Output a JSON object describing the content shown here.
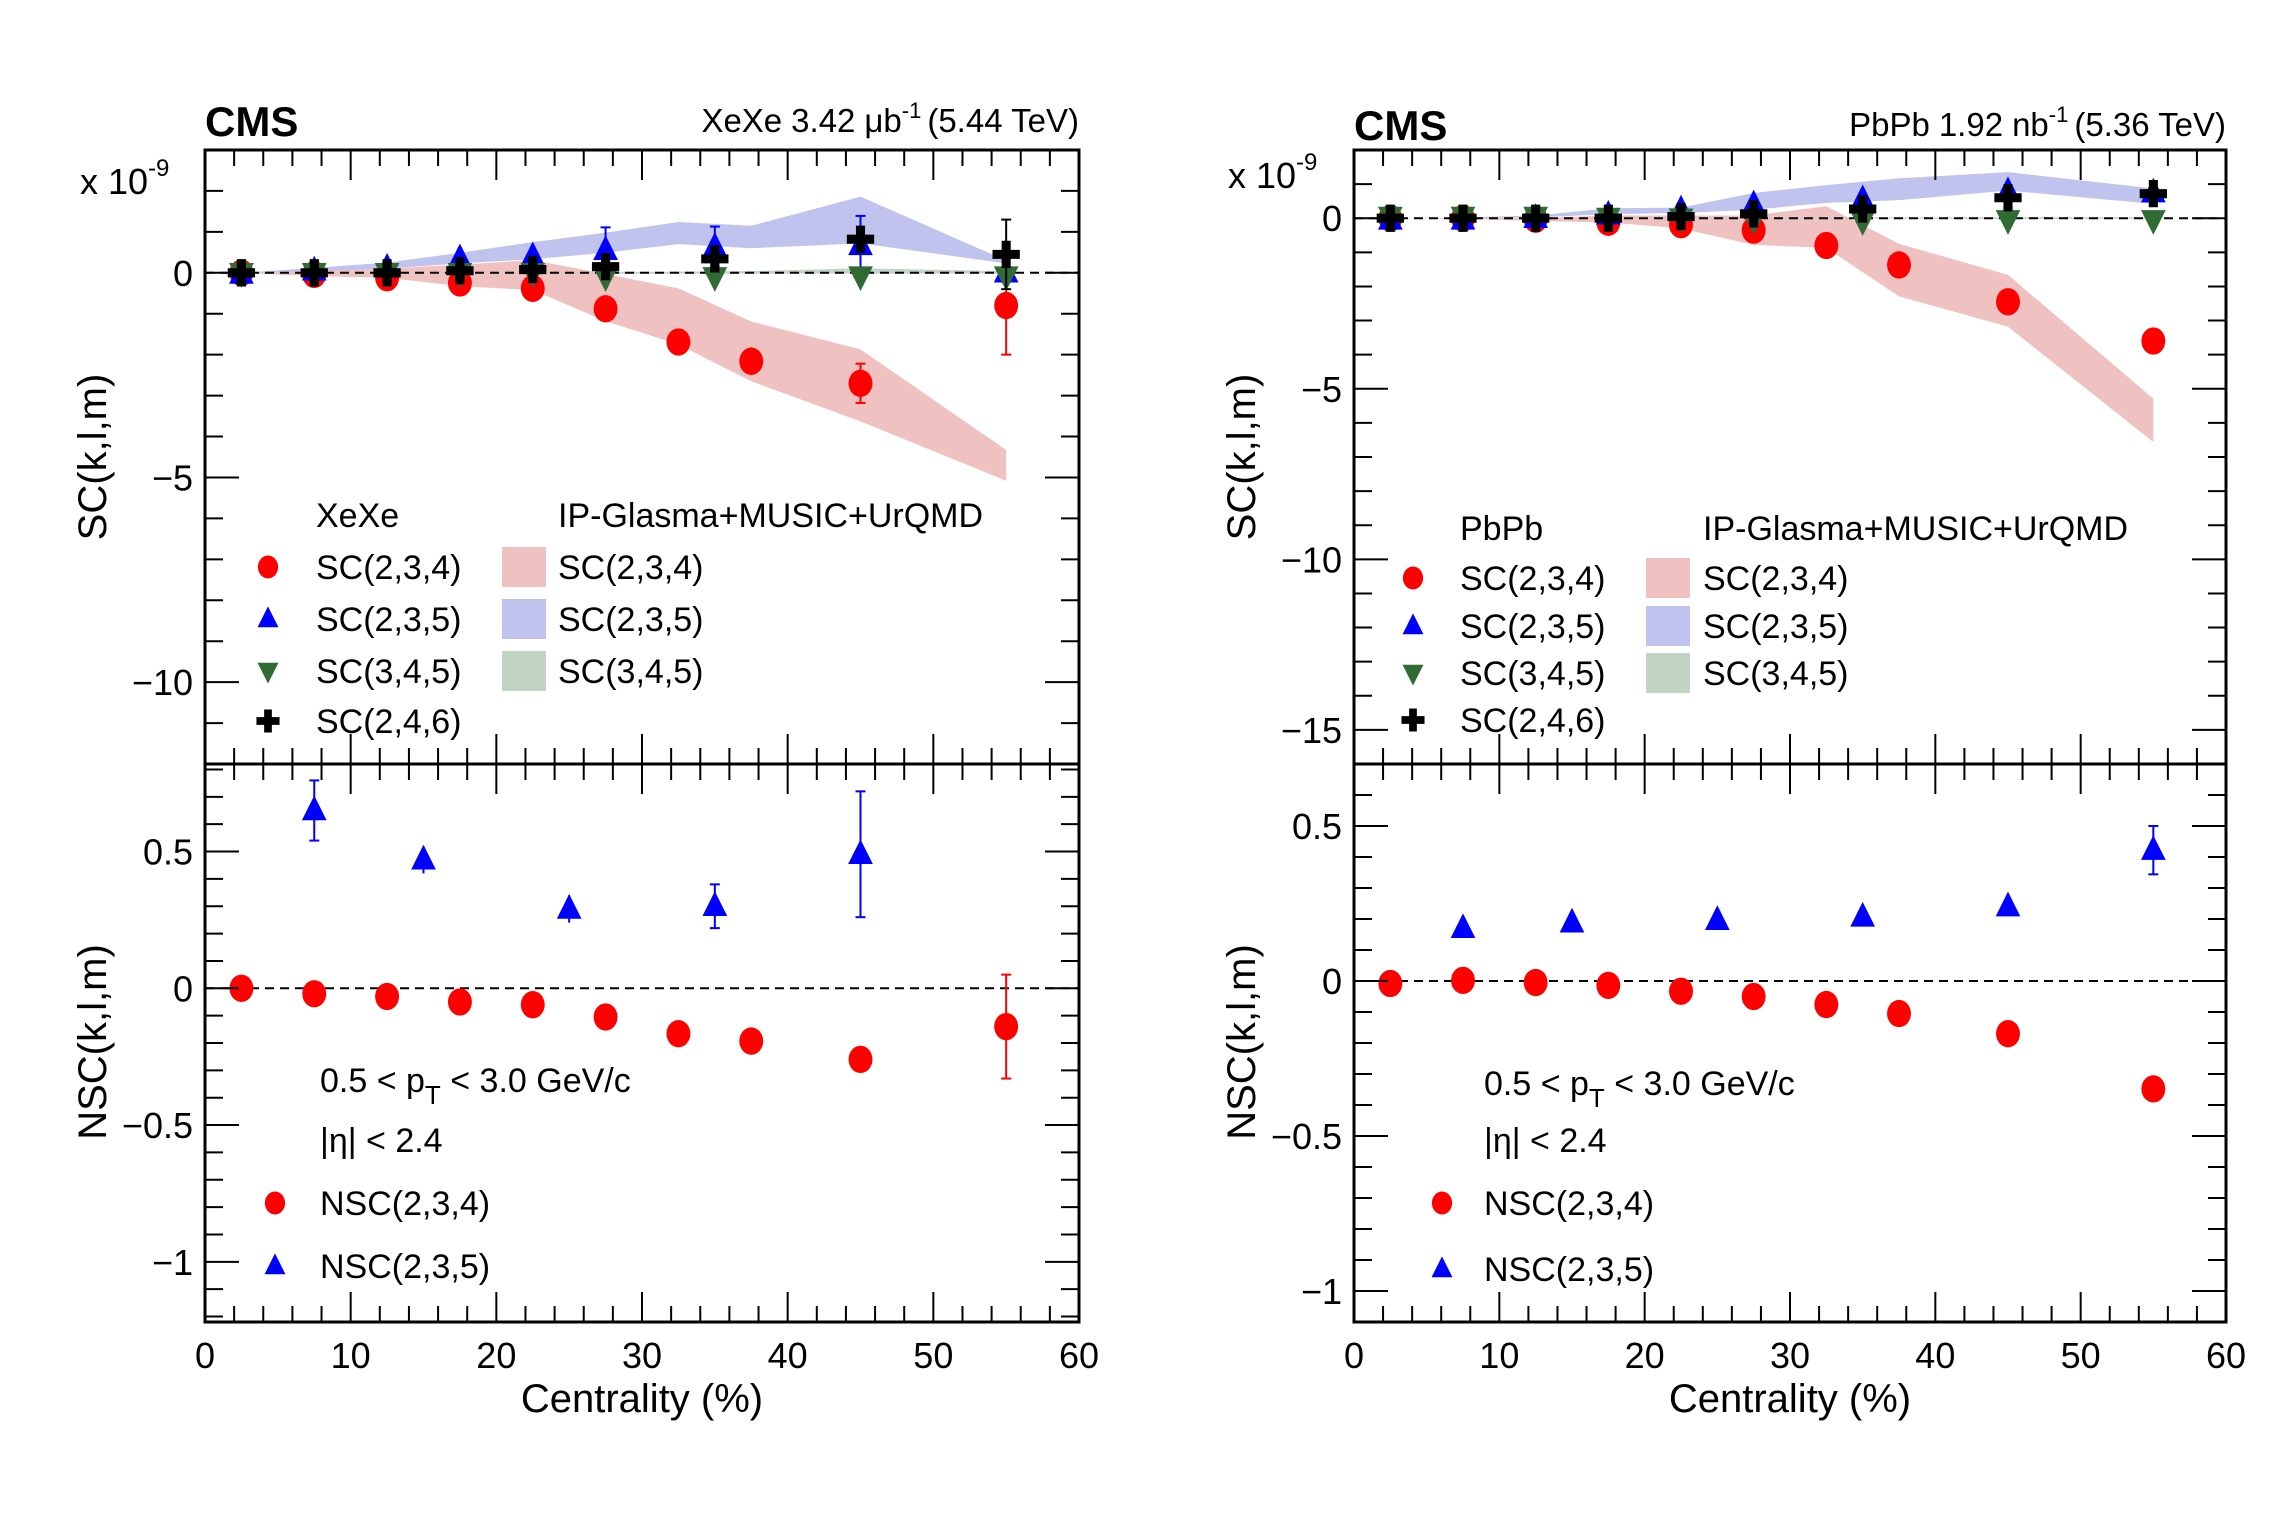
{
  "chart_data": [
    {
      "type": "scatter",
      "panel": "XeXe-SC",
      "experiment_label": "CMS",
      "lumi_label": {
        "system": "XeXe",
        "value": "3.42",
        "unit_base": "μb",
        "unit_exp": "-1",
        "energy": "(5.44 TeV)"
      },
      "multiplier_label": {
        "base": "x 10",
        "exp": "-9"
      },
      "xlabel": "Centrality (%)",
      "ylabel": "SC(k,l,m)",
      "xlim": [
        0,
        60
      ],
      "ylim": [
        -12,
        3
      ],
      "xticks": [
        0,
        10,
        20,
        30,
        40,
        50,
        60
      ],
      "yticks": [
        0,
        -5,
        -10
      ],
      "ytick_labels": [
        "0",
        "−5",
        "−10"
      ],
      "legend": {
        "data_header": "XeXe",
        "model_header": "IP-Glasma+MUSIC+UrQMD",
        "placement": "lower-left"
      },
      "series": [
        {
          "name": "SC(2,3,4)",
          "marker": "circle",
          "color": "#ff0000",
          "x": [
            2.5,
            7.5,
            12.5,
            17.5,
            22.5,
            27.5,
            32.5,
            37.5,
            45,
            55
          ],
          "y": [
            0.0,
            -0.04,
            -0.12,
            -0.25,
            -0.38,
            -0.88,
            -1.69,
            -2.16,
            -2.7,
            -0.8
          ],
          "err": [
            0.03,
            0.03,
            0.04,
            0.05,
            0.08,
            0.1,
            0.12,
            0.34,
            0.48,
            1.2
          ]
        },
        {
          "name": "SC(2,3,5)",
          "marker": "triangle-up",
          "color": "#0000ff",
          "x": [
            2.5,
            7.5,
            12.5,
            17.5,
            22.5,
            27.5,
            35,
            45,
            55
          ],
          "y": [
            -0.03,
            0.05,
            0.12,
            0.35,
            0.4,
            0.55,
            0.63,
            0.67,
            0.0
          ],
          "err": [
            0.05,
            0.08,
            0.1,
            0.22,
            0.3,
            0.56,
            0.5,
            0.72,
            0.0
          ]
        },
        {
          "name": "SC(3,4,5)",
          "marker": "triangle-down",
          "color": "#2f6b32",
          "x": [
            2.5,
            7.5,
            12.5,
            17.5,
            22.5,
            27.5,
            35,
            45,
            55
          ],
          "y": [
            0.0,
            0.0,
            0.0,
            0.0,
            0.0,
            -0.1,
            -0.1,
            -0.08,
            -0.08
          ],
          "err": [
            0.03,
            0.03,
            0.03,
            0.03,
            0.04,
            0.05,
            0.06,
            0.06,
            0.1
          ]
        },
        {
          "name": "SC(2,4,6)",
          "marker": "cross",
          "color": "#000000",
          "x": [
            2.5,
            7.5,
            12.5,
            17.5,
            22.5,
            27.5,
            35,
            45,
            55
          ],
          "y": [
            0.0,
            0.0,
            0.0,
            0.05,
            0.08,
            0.15,
            0.34,
            0.82,
            0.45
          ],
          "err": [
            0.05,
            0.06,
            0.08,
            0.1,
            0.12,
            0.15,
            0.2,
            0.3,
            0.85
          ]
        }
      ],
      "bands": [
        {
          "name": "SC(2,3,4)",
          "color": "#efc1c1",
          "x": [
            2.5,
            7.5,
            12.5,
            17.5,
            22.5,
            27.5,
            32.5,
            37.5,
            45,
            55
          ],
          "upper": [
            0.0,
            0.05,
            0.1,
            0.2,
            0.31,
            -0.03,
            -0.38,
            -1.19,
            -1.87,
            -4.33
          ],
          "lower": [
            0.0,
            -0.08,
            -0.12,
            -0.33,
            -0.42,
            -1.18,
            -1.75,
            -2.65,
            -3.63,
            -5.08
          ]
        },
        {
          "name": "SC(2,3,5)",
          "color": "#c0c3ee",
          "x": [
            2.5,
            7.5,
            12.5,
            17.5,
            22.5,
            27.5,
            32.5,
            37.5,
            45,
            55
          ],
          "upper": [
            0.0,
            0.12,
            0.25,
            0.49,
            0.75,
            0.98,
            1.24,
            1.15,
            1.86,
            0.3
          ],
          "lower": [
            0.0,
            0.04,
            0.1,
            0.23,
            0.33,
            0.49,
            0.7,
            0.6,
            0.72,
            0.23
          ]
        },
        {
          "name": "SC(3,4,5)",
          "color": "#c2d4c5",
          "x": [
            2.5,
            7.5,
            12.5,
            17.5,
            22.5,
            27.5,
            32.5,
            37.5,
            45,
            55
          ],
          "upper": [
            0.0,
            0.0,
            0.0,
            0.0,
            0.0,
            0.02,
            0.03,
            0.04,
            0.11,
            0.04
          ],
          "lower": [
            0.0,
            0.0,
            0.0,
            0.0,
            0.0,
            -0.02,
            -0.02,
            -0.02,
            -0.02,
            -0.02
          ]
        }
      ]
    },
    {
      "type": "scatter",
      "panel": "XeXe-NSC",
      "xlabel": "Centrality (%)",
      "ylabel": "NSC(k,l,m)",
      "xlim": [
        0,
        60
      ],
      "ylim": [
        -1.22,
        0.82
      ],
      "xticks": [
        0,
        10,
        20,
        30,
        40,
        50,
        60
      ],
      "xtick_labels": [
        "0",
        "10",
        "20",
        "30",
        "40",
        "50",
        "60"
      ],
      "yticks": [
        0.5,
        0,
        -0.5,
        -1
      ],
      "ytick_labels": [
        "0.5",
        "0",
        "−0.5",
        "−1"
      ],
      "annotations": {
        "pt_range": {
          "pre": "0.5 < p",
          "sub": "T",
          "post": " < 3.0 GeV/c"
        },
        "eta_range": "|η| < 2.4"
      },
      "series": [
        {
          "name": "NSC(2,3,4)",
          "marker": "circle",
          "color": "#ff0000",
          "x": [
            2.5,
            7.5,
            12.5,
            17.5,
            22.5,
            27.5,
            32.5,
            37.5,
            45,
            55
          ],
          "y": [
            0.0,
            -0.02,
            -0.03,
            -0.05,
            -0.06,
            -0.105,
            -0.166,
            -0.193,
            -0.26,
            -0.14
          ],
          "err": [
            0.005,
            0.006,
            0.007,
            0.008,
            0.01,
            0.012,
            0.015,
            0.018,
            0.03,
            0.19
          ]
        },
        {
          "name": "NSC(2,3,5)",
          "marker": "triangle-up",
          "color": "#0000ff",
          "x": [
            7.5,
            15,
            25,
            35,
            45
          ],
          "y": [
            0.65,
            0.47,
            0.29,
            0.3,
            0.49
          ],
          "err": [
            0.11,
            0.05,
            0.05,
            0.08,
            0.23
          ]
        }
      ]
    },
    {
      "type": "scatter",
      "panel": "PbPb-SC",
      "experiment_label": "CMS",
      "lumi_label": {
        "system": "PbPb",
        "value": "1.92",
        "unit_base": "nb",
        "unit_exp": "-1",
        "energy": "(5.36 TeV)"
      },
      "multiplier_label": {
        "base": "x 10",
        "exp": "-9"
      },
      "xlabel": "Centrality (%)",
      "ylabel": "SC(k,l,m)",
      "xlim": [
        0,
        60
      ],
      "ylim": [
        -16,
        2
      ],
      "xticks": [
        0,
        10,
        20,
        30,
        40,
        50,
        60
      ],
      "yticks": [
        0,
        -5,
        -10,
        -15
      ],
      "ytick_labels": [
        "0",
        "−5",
        "−10",
        "−15"
      ],
      "legend": {
        "data_header": "PbPb",
        "model_header": "IP-Glasma+MUSIC+UrQMD",
        "placement": "lower-left"
      },
      "series": [
        {
          "name": "SC(2,3,4)",
          "marker": "circle",
          "color": "#ff0000",
          "x": [
            2.5,
            7.5,
            12.5,
            17.5,
            22.5,
            27.5,
            32.5,
            37.5,
            45,
            55
          ],
          "y": [
            0.0,
            0.0,
            -0.03,
            -0.12,
            -0.19,
            -0.35,
            -0.8,
            -1.37,
            -2.45,
            -3.6
          ],
          "err": [
            0.01,
            0.01,
            0.01,
            0.02,
            0.02,
            0.03,
            0.04,
            0.05,
            0.07,
            0.12
          ]
        },
        {
          "name": "SC(2,3,5)",
          "marker": "triangle-up",
          "color": "#0000ff",
          "x": [
            2.5,
            7.5,
            12.5,
            17.5,
            22.5,
            27.5,
            35,
            45,
            55
          ],
          "y": [
            -0.05,
            -0.05,
            0.0,
            0.1,
            0.25,
            0.4,
            0.55,
            0.79,
            0.75
          ],
          "err": [
            0.01,
            0.01,
            0.02,
            0.02,
            0.03,
            0.04,
            0.05,
            0.08,
            0.12
          ]
        },
        {
          "name": "SC(3,4,5)",
          "marker": "triangle-down",
          "color": "#2f6b32",
          "x": [
            2.5,
            7.5,
            12.5,
            17.5,
            22.5,
            27.5,
            35,
            45,
            55
          ],
          "y": [
            0.05,
            0.05,
            0.05,
            0.02,
            0.0,
            -0.05,
            -0.08,
            -0.05,
            -0.05
          ],
          "err": [
            0.01,
            0.01,
            0.01,
            0.01,
            0.01,
            0.02,
            0.02,
            0.03,
            0.05
          ]
        },
        {
          "name": "SC(2,4,6)",
          "marker": "cross",
          "color": "#000000",
          "x": [
            2.5,
            7.5,
            12.5,
            17.5,
            22.5,
            27.5,
            35,
            45,
            55
          ],
          "y": [
            0.0,
            0.0,
            0.0,
            0.0,
            0.05,
            0.13,
            0.27,
            0.6,
            0.72
          ],
          "err": [
            0.02,
            0.02,
            0.03,
            0.04,
            0.05,
            0.06,
            0.08,
            0.12,
            0.2
          ]
        }
      ],
      "bands": [
        {
          "name": "SC(2,3,4)",
          "color": "#efc1c1",
          "x": [
            2.5,
            7.5,
            12.5,
            17.5,
            22.5,
            27.5,
            32.5,
            37.5,
            45,
            55
          ],
          "upper": [
            0.0,
            0.0,
            0.0,
            0.08,
            0.08,
            0.08,
            0.35,
            -0.75,
            -1.66,
            -5.29
          ],
          "lower": [
            0.0,
            -0.02,
            -0.08,
            -0.12,
            -0.3,
            -0.78,
            -0.87,
            -2.29,
            -3.18,
            -6.56
          ]
        },
        {
          "name": "SC(2,3,5)",
          "color": "#c0c3ee",
          "x": [
            2.5,
            7.5,
            12.5,
            17.5,
            22.5,
            27.5,
            32.5,
            37.5,
            45,
            55
          ],
          "upper": [
            0.0,
            0.02,
            0.08,
            0.29,
            0.31,
            0.74,
            0.97,
            1.17,
            1.35,
            0.87
          ],
          "lower": [
            0.0,
            0.0,
            0.02,
            0.12,
            0.15,
            0.25,
            0.45,
            0.53,
            0.81,
            0.42
          ]
        },
        {
          "name": "SC(3,4,5)",
          "color": "#c2d4c5",
          "x": [
            2.5,
            7.5,
            12.5,
            17.5,
            22.5,
            27.5,
            32.5,
            37.5,
            45,
            55
          ],
          "upper": [
            0.0,
            0.0,
            0.0,
            0.0,
            0.0,
            0.01,
            0.02,
            0.02,
            0.03,
            0.02
          ],
          "lower": [
            0.0,
            0.0,
            0.0,
            0.0,
            0.0,
            -0.01,
            -0.01,
            -0.01,
            -0.02,
            -0.02
          ]
        }
      ]
    },
    {
      "type": "scatter",
      "panel": "PbPb-NSC",
      "xlabel": "Centrality (%)",
      "ylabel": "NSC(k,l,m)",
      "xlim": [
        0,
        60
      ],
      "ylim": [
        -1.1,
        0.7
      ],
      "xticks": [
        0,
        10,
        20,
        30,
        40,
        50,
        60
      ],
      "xtick_labels": [
        "0",
        "10",
        "20",
        "30",
        "40",
        "50",
        "60"
      ],
      "yticks": [
        0.5,
        0,
        -0.5,
        -1
      ],
      "ytick_labels": [
        "0.5",
        "0",
        "−0.5",
        "−1"
      ],
      "annotations": {
        "pt_range": {
          "pre": "0.5 < p",
          "sub": "T",
          "post": " < 3.0 GeV/c"
        },
        "eta_range": "|η| < 2.4"
      },
      "series": [
        {
          "name": "NSC(2,3,4)",
          "marker": "circle",
          "color": "#ff0000",
          "x": [
            2.5,
            7.5,
            12.5,
            17.5,
            22.5,
            27.5,
            32.5,
            37.5,
            45,
            55
          ],
          "y": [
            -0.008,
            0.002,
            -0.005,
            -0.014,
            -0.033,
            -0.05,
            -0.076,
            -0.105,
            -0.17,
            -0.348
          ],
          "err": [
            0.002,
            0.002,
            0.002,
            0.003,
            0.003,
            0.004,
            0.005,
            0.006,
            0.008,
            0.015
          ]
        },
        {
          "name": "NSC(2,3,5)",
          "marker": "triangle-up",
          "color": "#0000ff",
          "x": [
            7.5,
            15,
            25,
            35,
            45,
            55
          ],
          "y": [
            0.17,
            0.188,
            0.196,
            0.207,
            0.24,
            0.422
          ],
          "err": [
            0.01,
            0.01,
            0.012,
            0.014,
            0.02,
            0.078
          ]
        }
      ]
    }
  ]
}
